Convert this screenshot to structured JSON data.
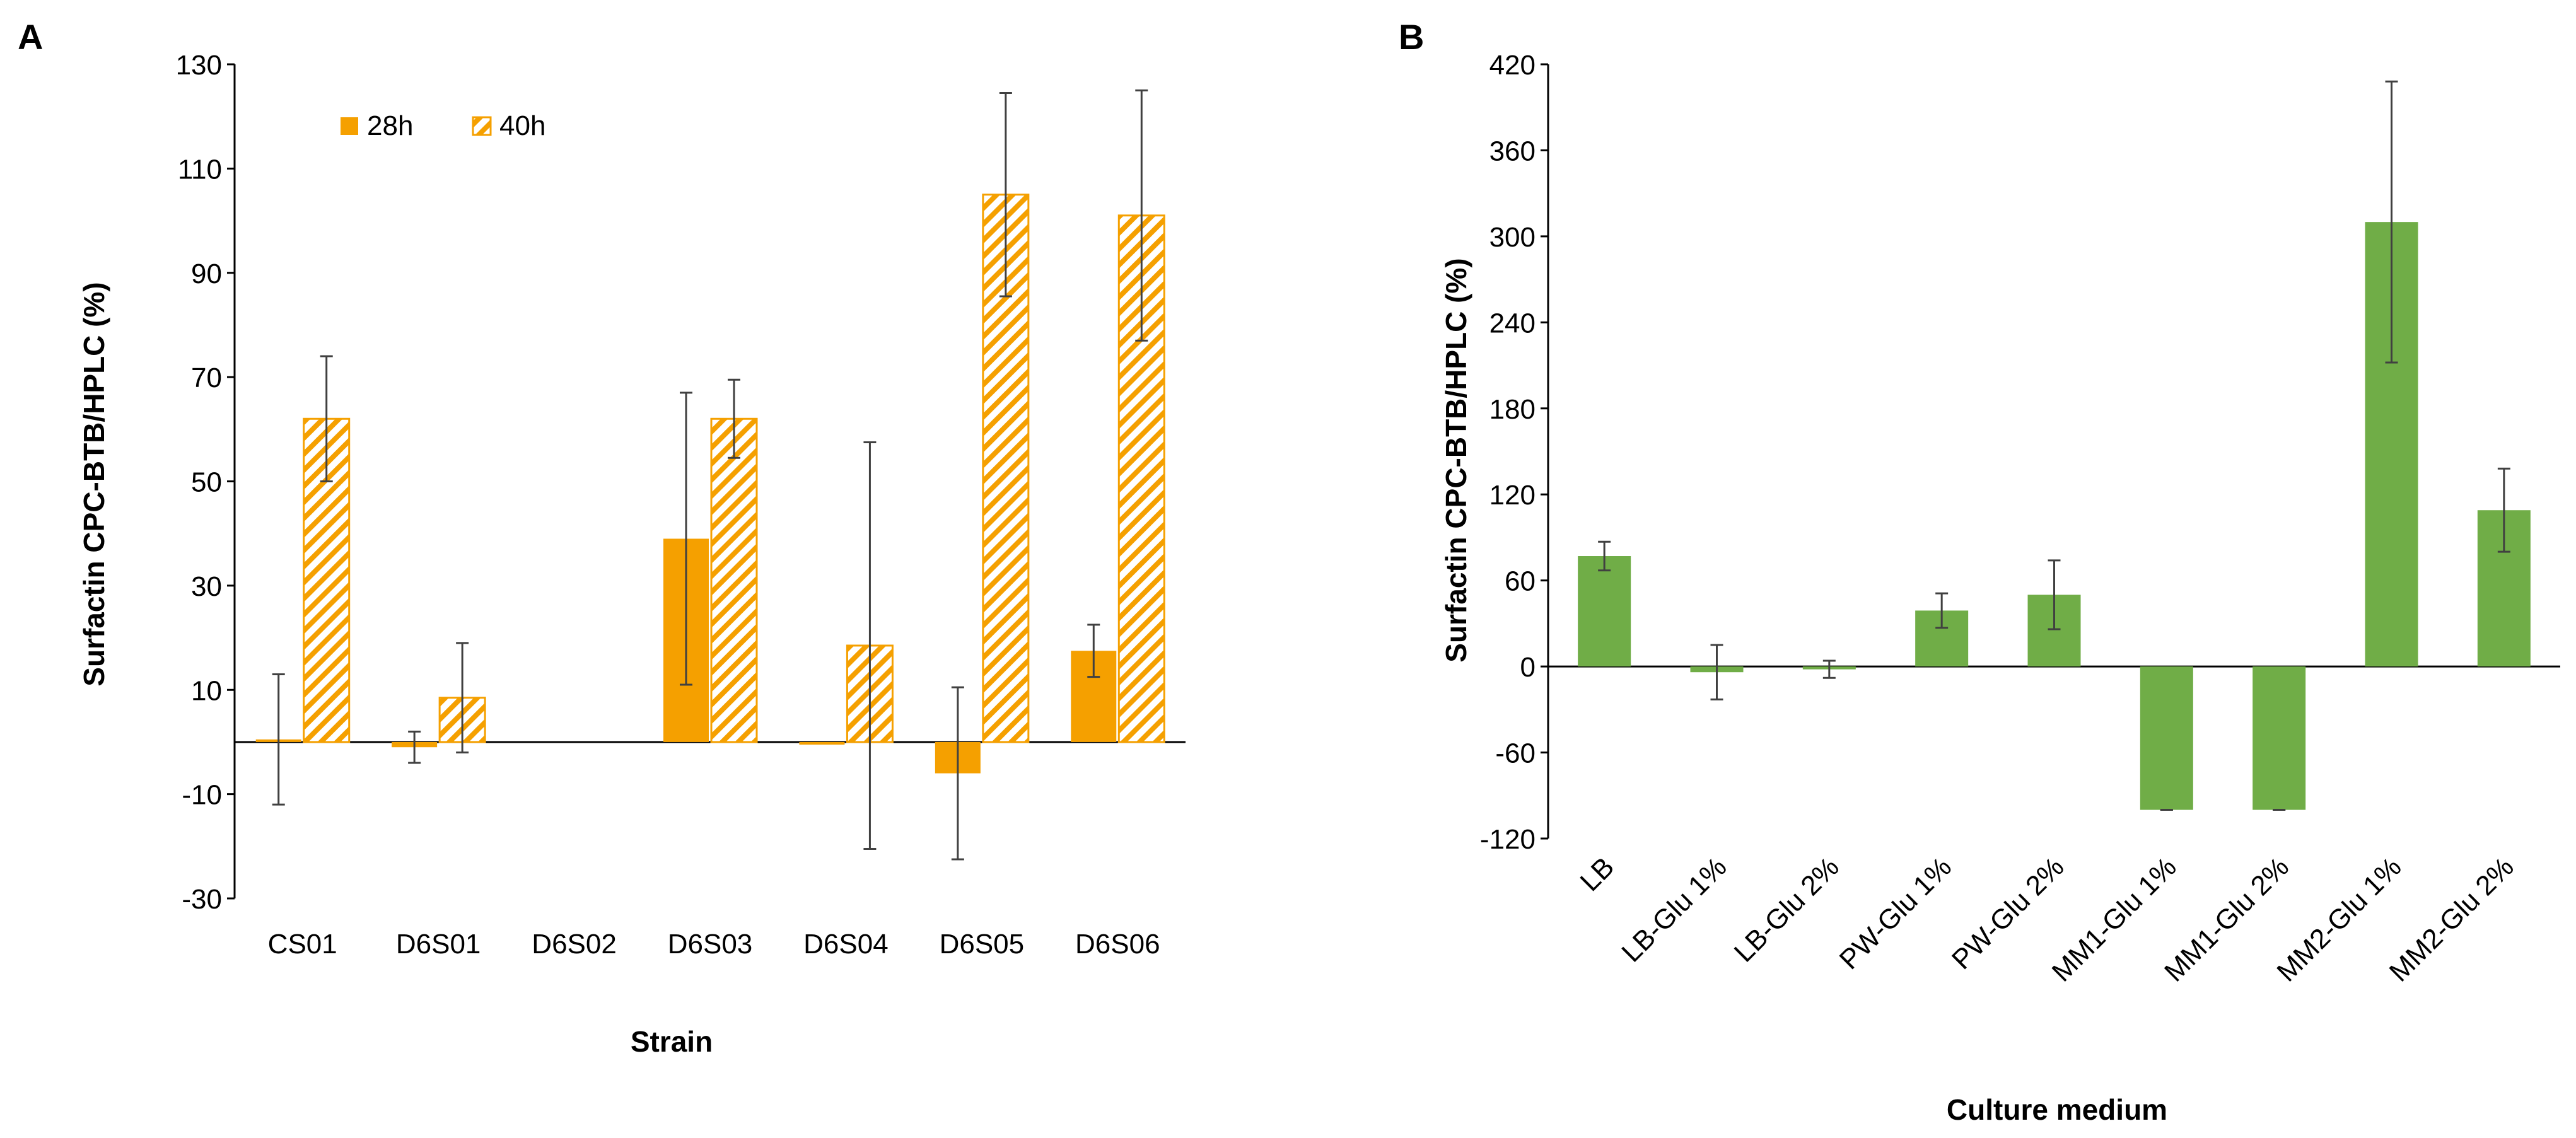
{
  "panels": {
    "a": {
      "label": "A"
    },
    "b": {
      "label": "B"
    }
  },
  "colors": {
    "orange": "#F5A000",
    "green": "#70AD47",
    "axis": "#000000",
    "errorbar": "#404040"
  },
  "chart_data": [
    {
      "type": "bar",
      "panel": "A",
      "title": "",
      "xlabel": "Strain",
      "ylabel": "Surfactin CPC-BTB/HPLC (%)",
      "ylim": [
        -30,
        130
      ],
      "yticks": [
        -30,
        -10,
        10,
        30,
        50,
        70,
        90,
        110,
        130
      ],
      "grid": false,
      "legend_position": "top-left",
      "categories": [
        "CS01",
        "D6S01",
        "D6S02",
        "D6S03",
        "D6S04",
        "D6S05",
        "D6S06"
      ],
      "series": [
        {
          "name": "28h",
          "pattern": "solid",
          "values": [
            0.5,
            -1,
            null,
            39,
            -0.5,
            -6,
            17.5
          ],
          "errors": [
            12.5,
            3,
            null,
            28,
            null,
            16.5,
            5
          ]
        },
        {
          "name": "40h",
          "pattern": "hatched",
          "values": [
            62,
            8.5,
            null,
            62,
            18.5,
            105,
            101
          ],
          "errors": [
            12,
            10.5,
            null,
            7.5,
            39,
            19.5,
            24
          ]
        }
      ]
    },
    {
      "type": "bar",
      "panel": "B",
      "title": "",
      "xlabel": "Culture medium",
      "ylabel": "Surfactin CPC-BTB/HPLC (%)",
      "ylim": [
        -120,
        420
      ],
      "yticks": [
        -120,
        -60,
        0,
        60,
        120,
        180,
        240,
        300,
        360,
        420
      ],
      "grid": false,
      "categories": [
        "LB",
        "LB-Glu 1%",
        "LB-Glu 2%",
        "PW-Glu 1%",
        "PW-Glu 2%",
        "MM1-Glu 1%",
        "MM1-Glu 2%",
        "MM2-Glu 1%",
        "MM2-Glu 2%"
      ],
      "series": [
        {
          "name": "Surfactin",
          "values": [
            77,
            -4,
            -2,
            39,
            50,
            -100,
            -100,
            310,
            109
          ],
          "errors": [
            10,
            19,
            6,
            12,
            24,
            0,
            0,
            98,
            29
          ]
        }
      ]
    }
  ]
}
